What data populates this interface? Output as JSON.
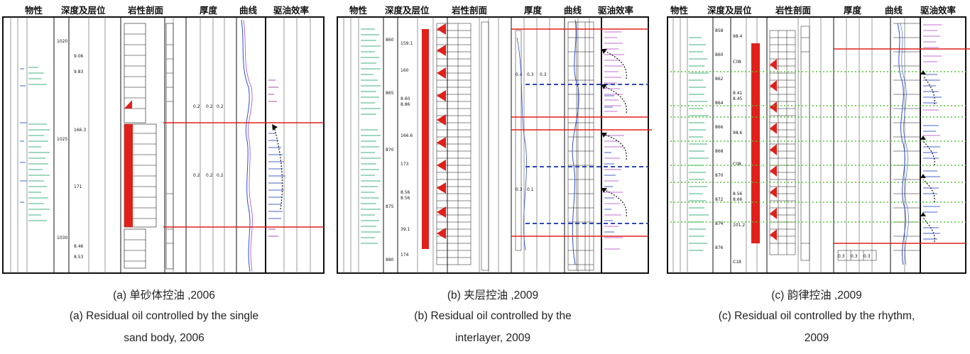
{
  "header_titles": [
    "物性",
    "深度及层位",
    "岩性剖面",
    "厚度",
    "曲线",
    "驱油效率"
  ],
  "panels": [
    {
      "id": "a",
      "caption_zh": "(a) 单砂体控油 ,2006",
      "caption_en_line1": "(a) Residual oil controlled by the single",
      "caption_en_line2": "sand body, 2006",
      "depth_labels": [
        "1020",
        "1025",
        "1030"
      ],
      "layer_labels": [
        "9.06",
        "9.83",
        "166.3",
        "171",
        "8.46",
        "8.53"
      ],
      "thickness_labels": [
        "0.2",
        "0.2",
        "0.2",
        "0.2",
        "0.2",
        "0.2"
      ]
    },
    {
      "id": "b",
      "caption_zh": "(b) 夹层控油 ,2009",
      "caption_en_line1": "(b) Residual oil controlled by the",
      "caption_en_line2": "interlayer, 2009",
      "depth_labels": [
        "860",
        "865",
        "870",
        "875",
        "880"
      ],
      "layer_labels": [
        "159.1",
        "160",
        "8.60",
        "8.86",
        "166.6",
        "173",
        "8.56",
        "8.56",
        "39.1",
        "174"
      ],
      "thickness_labels": [
        "0.4",
        "0.3",
        "0.3",
        "0.3",
        "0.1"
      ]
    },
    {
      "id": "c",
      "caption_zh": "(c) 韵律控油 ,2009",
      "caption_en_line1": "(c) Residual oil controlled by the rhythm,",
      "caption_en_line2": "2009",
      "depth_labels": [
        "858",
        "860",
        "862",
        "864",
        "866",
        "868",
        "870",
        "872",
        "874",
        "876"
      ],
      "layer_labels": [
        "98.4",
        "C08",
        "8.41",
        "8.45",
        "98.6",
        "C08",
        "8.56",
        "8.66",
        "101.2",
        "C18"
      ],
      "thickness_labels": [
        "0.3",
        "0.3",
        "0.3"
      ]
    }
  ]
}
